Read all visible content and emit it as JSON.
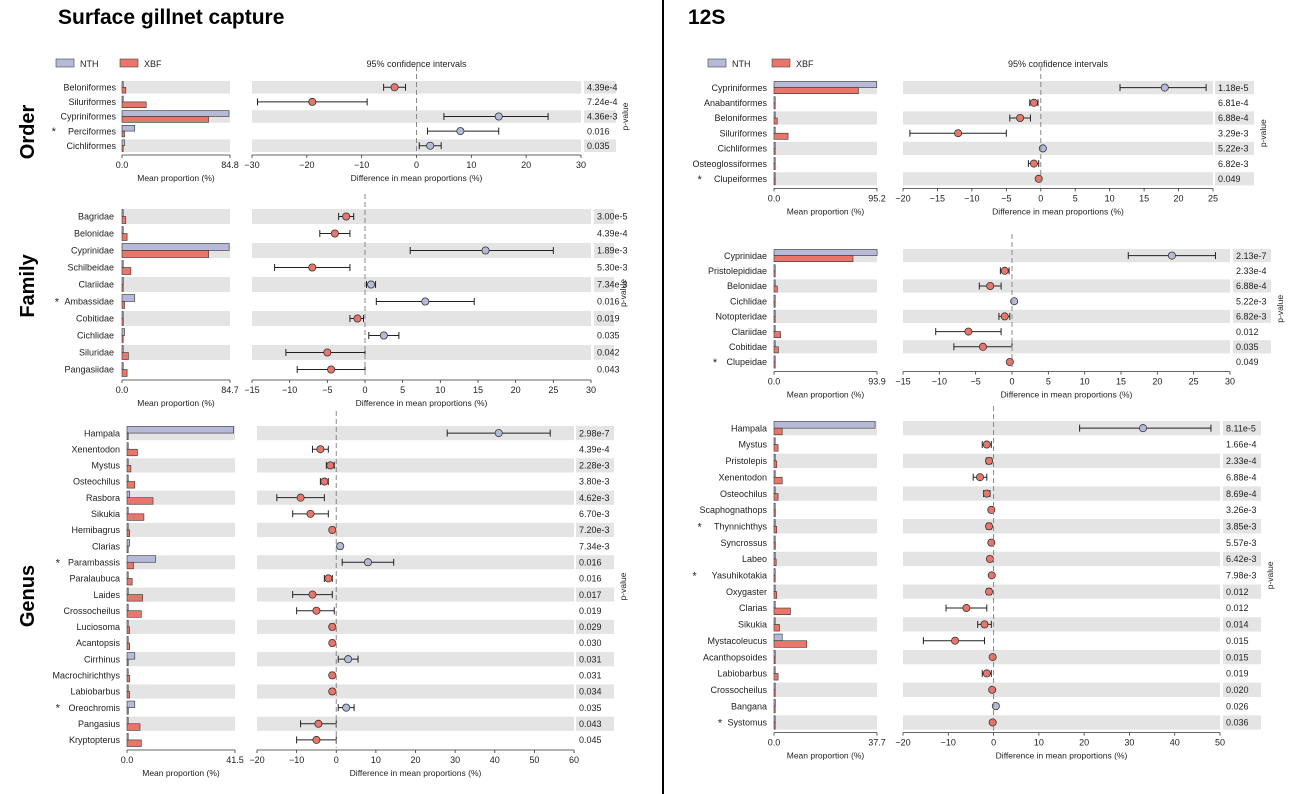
{
  "titles": {
    "left": "Surface gillnet capture",
    "right": "12S"
  },
  "row_labels": {
    "order": "Order",
    "family": "Family",
    "genus": "Genus"
  },
  "legend": {
    "nth": "NTH",
    "xbf": "XBF"
  },
  "ci_title": "95% confidence intervals",
  "axis_labels": {
    "mean": "Mean proportion (%)",
    "diff": "Difference in mean proportions (%)",
    "pvalue": "p-value"
  },
  "colors": {
    "nth": "#b7b9d8",
    "xbf": "#e8766a",
    "stripe": "#e4e4e4",
    "zero_line": "#888888"
  },
  "chart_data": [
    {
      "id": "gillnet-order",
      "type": "bar",
      "xlim_mean": [
        0,
        84.8
      ],
      "xlim_diff": [
        -30,
        30
      ],
      "xticks_diff": [
        -30,
        -20,
        -10,
        0,
        10,
        20,
        30
      ],
      "show_legend": true,
      "rows": [
        {
          "taxon": "Beloniformes",
          "star": false,
          "nth": 0,
          "xbf": 3,
          "diff": -4,
          "lo": -6,
          "hi": -2,
          "p": "4.39e-4"
        },
        {
          "taxon": "Siluriformes",
          "star": false,
          "nth": 0,
          "xbf": 19,
          "diff": -19,
          "lo": -29,
          "hi": -9,
          "p": "7.24e-4"
        },
        {
          "taxon": "Cypriniformes",
          "star": false,
          "nth": 84,
          "xbf": 68,
          "diff": 15,
          "lo": 5,
          "hi": 24,
          "p": "4.36e-3"
        },
        {
          "taxon": "Perciformes",
          "star": true,
          "nth": 10,
          "xbf": 2,
          "diff": 8,
          "lo": 2,
          "hi": 15,
          "p": "0.016"
        },
        {
          "taxon": "Cichliformes",
          "star": false,
          "nth": 2,
          "xbf": 0,
          "diff": 2.5,
          "lo": 0.5,
          "hi": 4.5,
          "p": "0.035"
        }
      ]
    },
    {
      "id": "gillnet-family",
      "type": "bar",
      "xlim_mean": [
        0,
        84.7
      ],
      "xlim_diff": [
        -15,
        30
      ],
      "xticks_diff": [
        -15,
        -10,
        -5,
        0,
        5,
        10,
        15,
        20,
        25,
        30
      ],
      "show_legend": false,
      "rows": [
        {
          "taxon": "Bagridae",
          "star": false,
          "nth": 0,
          "xbf": 3,
          "diff": -2.5,
          "lo": -3.5,
          "hi": -1.5,
          "p": "3.00e-5"
        },
        {
          "taxon": "Belonidae",
          "star": false,
          "nth": 0,
          "xbf": 4,
          "diff": -4,
          "lo": -6,
          "hi": -2,
          "p": "4.39e-4"
        },
        {
          "taxon": "Cyprinidae",
          "star": false,
          "nth": 84,
          "xbf": 68,
          "diff": 16,
          "lo": 6,
          "hi": 25,
          "p": "1.89e-3"
        },
        {
          "taxon": "Schilbeidae",
          "star": false,
          "nth": 0,
          "xbf": 7,
          "diff": -7,
          "lo": -12,
          "hi": -2,
          "p": "5.30e-3"
        },
        {
          "taxon": "Clariidae",
          "star": false,
          "nth": 1,
          "xbf": 0,
          "diff": 0.8,
          "lo": 0.2,
          "hi": 1.4,
          "p": "7.34e-3"
        },
        {
          "taxon": "Ambassidae",
          "star": true,
          "nth": 10,
          "xbf": 2,
          "diff": 8,
          "lo": 1.5,
          "hi": 14.5,
          "p": "0.016"
        },
        {
          "taxon": "Cobitidae",
          "star": false,
          "nth": 0,
          "xbf": 1,
          "diff": -1,
          "lo": -2,
          "hi": -0.2,
          "p": "0.019"
        },
        {
          "taxon": "Cichlidae",
          "star": false,
          "nth": 2,
          "xbf": 0,
          "diff": 2.5,
          "lo": 0.5,
          "hi": 4.5,
          "p": "0.035"
        },
        {
          "taxon": "Siluridae",
          "star": false,
          "nth": 0,
          "xbf": 5,
          "diff": -5,
          "lo": -10.5,
          "hi": 0,
          "p": "0.042"
        },
        {
          "taxon": "Pangasiidae",
          "star": false,
          "nth": 0,
          "xbf": 4,
          "diff": -4.5,
          "lo": -9,
          "hi": 0,
          "p": "0.043"
        }
      ]
    },
    {
      "id": "gillnet-genus",
      "type": "bar",
      "xlim_mean": [
        0,
        41.5
      ],
      "xlim_diff": [
        -20,
        60
      ],
      "xticks_diff": [
        -20,
        -10,
        0,
        10,
        20,
        30,
        40,
        50,
        60
      ],
      "show_legend": false,
      "rows": [
        {
          "taxon": "Hampala",
          "star": false,
          "nth": 41,
          "xbf": 0,
          "diff": 41,
          "lo": 28,
          "hi": 54,
          "p": "2.98e-7"
        },
        {
          "taxon": "Xenentodon",
          "star": false,
          "nth": 0,
          "xbf": 4,
          "diff": -4,
          "lo": -6,
          "hi": -2,
          "p": "4.39e-4"
        },
        {
          "taxon": "Mystus",
          "star": false,
          "nth": 0,
          "xbf": 1.5,
          "diff": -1.5,
          "lo": -2.5,
          "hi": -0.5,
          "p": "2.28e-3"
        },
        {
          "taxon": "Osteochilus",
          "star": false,
          "nth": 0,
          "xbf": 3,
          "diff": -3,
          "lo": -4,
          "hi": -2,
          "p": "3.80e-3"
        },
        {
          "taxon": "Rasbora",
          "star": false,
          "nth": 1,
          "xbf": 10,
          "diff": -9,
          "lo": -15,
          "hi": -3,
          "p": "4.62e-3"
        },
        {
          "taxon": "Sikukia",
          "star": false,
          "nth": 0,
          "xbf": 6.5,
          "diff": -6.5,
          "lo": -11,
          "hi": -2,
          "p": "6.70e-3"
        },
        {
          "taxon": "Hemibagrus",
          "star": false,
          "nth": 0,
          "xbf": 1,
          "diff": -1,
          "lo": -1.5,
          "hi": -0.5,
          "p": "7.20e-3"
        },
        {
          "taxon": "Clarias",
          "star": false,
          "nth": 1,
          "xbf": 0,
          "diff": 1,
          "lo": 0.5,
          "hi": 1.5,
          "p": "7.34e-3"
        },
        {
          "taxon": "Parambassis",
          "star": true,
          "nth": 11,
          "xbf": 2.5,
          "diff": 8,
          "lo": 1.5,
          "hi": 14.5,
          "p": "0.016"
        },
        {
          "taxon": "Paralaubuca",
          "star": false,
          "nth": 0,
          "xbf": 2,
          "diff": -2,
          "lo": -3,
          "hi": -1,
          "p": "0.016"
        },
        {
          "taxon": "Laides",
          "star": false,
          "nth": 0,
          "xbf": 6,
          "diff": -6,
          "lo": -11,
          "hi": -1,
          "p": "0.017"
        },
        {
          "taxon": "Crossocheilus",
          "star": false,
          "nth": 0,
          "xbf": 5.5,
          "diff": -5,
          "lo": -10,
          "hi": -0.5,
          "p": "0.019"
        },
        {
          "taxon": "Luciosoma",
          "star": false,
          "nth": 0,
          "xbf": 1,
          "diff": -1,
          "lo": -1.5,
          "hi": -0.5,
          "p": "0.029"
        },
        {
          "taxon": "Acantopsis",
          "star": false,
          "nth": 0,
          "xbf": 1,
          "diff": -1,
          "lo": -1.5,
          "hi": -0.5,
          "p": "0.030"
        },
        {
          "taxon": "Cirrhinus",
          "star": false,
          "nth": 3,
          "xbf": 0,
          "diff": 3,
          "lo": 0.5,
          "hi": 5.5,
          "p": "0.031"
        },
        {
          "taxon": "Macrochirichthys",
          "star": false,
          "nth": 0,
          "xbf": 1,
          "diff": -1,
          "lo": -1.5,
          "hi": -0.5,
          "p": "0.031"
        },
        {
          "taxon": "Labiobarbus",
          "star": false,
          "nth": 0,
          "xbf": 1,
          "diff": -1,
          "lo": -1.5,
          "hi": -0.5,
          "p": "0.034"
        },
        {
          "taxon": "Oreochromis",
          "star": true,
          "nth": 3,
          "xbf": 0.5,
          "diff": 2.5,
          "lo": 0.5,
          "hi": 4.5,
          "p": "0.035"
        },
        {
          "taxon": "Pangasius",
          "star": false,
          "nth": 0,
          "xbf": 5,
          "diff": -4.5,
          "lo": -9,
          "hi": 0,
          "p": "0.043"
        },
        {
          "taxon": "Kryptopterus",
          "star": false,
          "nth": 0,
          "xbf": 5.5,
          "diff": -5,
          "lo": -10,
          "hi": 0,
          "p": "0.045"
        }
      ]
    },
    {
      "id": "12s-order",
      "type": "bar",
      "xlim_mean": [
        0,
        95.2
      ],
      "xlim_diff": [
        -20,
        25
      ],
      "xticks_diff": [
        -20,
        -15,
        -10,
        -5,
        0,
        5,
        10,
        15,
        20,
        25
      ],
      "show_legend": true,
      "rows": [
        {
          "taxon": "Cypriniformes",
          "star": false,
          "nth": 95,
          "xbf": 78,
          "diff": 18,
          "lo": 11.5,
          "hi": 24,
          "p": "1.18e-5"
        },
        {
          "taxon": "Anabantiformes",
          "star": false,
          "nth": 0,
          "xbf": 1,
          "diff": -1,
          "lo": -1.6,
          "hi": -0.4,
          "p": "6.81e-4"
        },
        {
          "taxon": "Beloniformes",
          "star": false,
          "nth": 0,
          "xbf": 3,
          "diff": -3,
          "lo": -4.5,
          "hi": -1.5,
          "p": "6.88e-4"
        },
        {
          "taxon": "Siluriformes",
          "star": false,
          "nth": 1,
          "xbf": 13,
          "diff": -12,
          "lo": -19,
          "hi": -5,
          "p": "3.29e-3"
        },
        {
          "taxon": "Cichliformes",
          "star": false,
          "nth": 0.5,
          "xbf": 0,
          "diff": 0.3,
          "lo": 0.2,
          "hi": 0.4,
          "p": "5.22e-3"
        },
        {
          "taxon": "Osteoglossiformes",
          "star": false,
          "nth": 0,
          "xbf": 1,
          "diff": -1,
          "lo": -1.8,
          "hi": -0.3,
          "p": "6.82e-3"
        },
        {
          "taxon": "Clupeiformes",
          "star": true,
          "nth": 0,
          "xbf": 0.3,
          "diff": -0.3,
          "lo": -0.5,
          "hi": -0.1,
          "p": "0.049"
        }
      ]
    },
    {
      "id": "12s-family",
      "type": "bar",
      "xlim_mean": [
        0,
        93.9
      ],
      "xlim_diff": [
        -15,
        30
      ],
      "xticks_diff": [
        -15,
        -10,
        -5,
        0,
        5,
        10,
        15,
        20,
        25,
        30
      ],
      "show_legend": false,
      "rows": [
        {
          "taxon": "Cyprinidae",
          "star": false,
          "nth": 94,
          "xbf": 72,
          "diff": 22,
          "lo": 16,
          "hi": 28,
          "p": "2.13e-7"
        },
        {
          "taxon": "Pristolepididae",
          "star": false,
          "nth": 0,
          "xbf": 1,
          "diff": -1,
          "lo": -1.6,
          "hi": -0.4,
          "p": "2.33e-4"
        },
        {
          "taxon": "Belonidae",
          "star": false,
          "nth": 0,
          "xbf": 3,
          "diff": -3,
          "lo": -4.5,
          "hi": -1.5,
          "p": "6.88e-4"
        },
        {
          "taxon": "Cichlidae",
          "star": false,
          "nth": 0.5,
          "xbf": 0,
          "diff": 0.3,
          "lo": 0.2,
          "hi": 0.4,
          "p": "5.22e-3"
        },
        {
          "taxon": "Notopteridae",
          "star": false,
          "nth": 0,
          "xbf": 1,
          "diff": -1,
          "lo": -1.8,
          "hi": -0.3,
          "p": "6.82e-3"
        },
        {
          "taxon": "Clariidae",
          "star": false,
          "nth": 0,
          "xbf": 6,
          "diff": -6,
          "lo": -10.5,
          "hi": -1.5,
          "p": "0.012"
        },
        {
          "taxon": "Cobitidae",
          "star": false,
          "nth": 0,
          "xbf": 4,
          "diff": -4,
          "lo": -8,
          "hi": 0,
          "p": "0.035"
        },
        {
          "taxon": "Clupeidae",
          "star": true,
          "nth": 0,
          "xbf": 0.3,
          "diff": -0.3,
          "lo": -0.5,
          "hi": -0.1,
          "p": "0.049"
        }
      ]
    },
    {
      "id": "12s-genus",
      "type": "bar",
      "xlim_mean": [
        0,
        37.7
      ],
      "xlim_diff": [
        -20,
        50
      ],
      "xticks_diff": [
        -20,
        -10,
        0,
        10,
        20,
        30,
        40,
        50
      ],
      "show_legend": false,
      "rows": [
        {
          "taxon": "Hampala",
          "star": false,
          "nth": 37,
          "xbf": 3,
          "diff": 33,
          "lo": 19,
          "hi": 48,
          "p": "8.11e-5"
        },
        {
          "taxon": "Mystus",
          "star": false,
          "nth": 0,
          "xbf": 1.5,
          "diff": -1.5,
          "lo": -2.5,
          "hi": -0.5,
          "p": "1.66e-4"
        },
        {
          "taxon": "Pristolepis",
          "star": false,
          "nth": 0,
          "xbf": 1,
          "diff": -1,
          "lo": -1.6,
          "hi": -0.4,
          "p": "2.33e-4"
        },
        {
          "taxon": "Xenentodon",
          "star": false,
          "nth": 0,
          "xbf": 3,
          "diff": -3,
          "lo": -4.5,
          "hi": -1.5,
          "p": "6.88e-4"
        },
        {
          "taxon": "Osteochilus",
          "star": false,
          "nth": 0,
          "xbf": 1.5,
          "diff": -1.5,
          "lo": -2.2,
          "hi": -0.8,
          "p": "8.69e-4"
        },
        {
          "taxon": "Scaphognathops",
          "star": false,
          "nth": 0,
          "xbf": 0.5,
          "diff": -0.5,
          "lo": -0.8,
          "hi": -0.2,
          "p": "3.26e-3"
        },
        {
          "taxon": "Thynnichthys",
          "star": true,
          "nth": 0,
          "xbf": 1,
          "diff": -1,
          "lo": -1.5,
          "hi": -0.5,
          "p": "3.85e-3"
        },
        {
          "taxon": "Syncrossus",
          "star": false,
          "nth": 0,
          "xbf": 0.5,
          "diff": -0.5,
          "lo": -0.8,
          "hi": -0.2,
          "p": "5.57e-3"
        },
        {
          "taxon": "Labeo",
          "star": false,
          "nth": 0,
          "xbf": 0.8,
          "diff": -0.8,
          "lo": -1.2,
          "hi": -0.4,
          "p": "6.42e-3"
        },
        {
          "taxon": "Yasuhikotakia",
          "star": true,
          "nth": 0,
          "xbf": 0.4,
          "diff": -0.4,
          "lo": -0.6,
          "hi": -0.2,
          "p": "7.98e-3"
        },
        {
          "taxon": "Oxygaster",
          "star": false,
          "nth": 0,
          "xbf": 1,
          "diff": -1,
          "lo": -1.5,
          "hi": -0.5,
          "p": "0.012"
        },
        {
          "taxon": "Clarias",
          "star": false,
          "nth": 0,
          "xbf": 6,
          "diff": -6,
          "lo": -10.5,
          "hi": -1.5,
          "p": "0.012"
        },
        {
          "taxon": "Sikukia",
          "star": false,
          "nth": 0,
          "xbf": 2,
          "diff": -2,
          "lo": -3.5,
          "hi": -0.5,
          "p": "0.014"
        },
        {
          "taxon": "Mystacoleucus",
          "star": false,
          "nth": 3,
          "xbf": 12,
          "diff": -8.5,
          "lo": -15.5,
          "hi": -2,
          "p": "0.015"
        },
        {
          "taxon": "Acanthopsoides",
          "star": false,
          "nth": 0,
          "xbf": 0.2,
          "diff": -0.2,
          "lo": -0.3,
          "hi": -0.1,
          "p": "0.015"
        },
        {
          "taxon": "Labiobarbus",
          "star": false,
          "nth": 0,
          "xbf": 1.5,
          "diff": -1.5,
          "lo": -2.5,
          "hi": -0.5,
          "p": "0.019"
        },
        {
          "taxon": "Crossocheilus",
          "star": false,
          "nth": 0,
          "xbf": 0.3,
          "diff": -0.3,
          "lo": -0.5,
          "hi": -0.1,
          "p": "0.020"
        },
        {
          "taxon": "Bangana",
          "star": false,
          "nth": 0.5,
          "xbf": 0,
          "diff": 0.5,
          "lo": 0.3,
          "hi": 0.7,
          "p": "0.026"
        },
        {
          "taxon": "Systomus",
          "star": true,
          "nth": 0,
          "xbf": 0.2,
          "diff": -0.2,
          "lo": -0.3,
          "hi": -0.1,
          "p": "0.036"
        }
      ]
    }
  ]
}
